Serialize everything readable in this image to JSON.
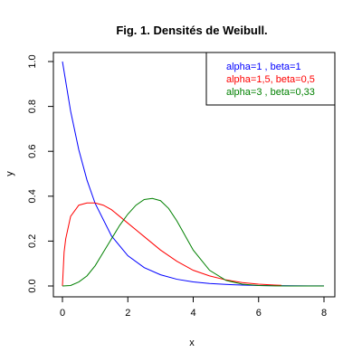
{
  "chart_data": {
    "type": "line",
    "title": "Fig. 1. Densités de Weibull.",
    "xlabel": "x",
    "ylabel": "y",
    "xlim": [
      0,
      8
    ],
    "ylim": [
      0,
      1
    ],
    "xticks": [
      0,
      2,
      4,
      6,
      8
    ],
    "yticks": [
      0.0,
      0.2,
      0.4,
      0.6,
      0.8,
      1.0
    ],
    "xtick_labels": [
      "0",
      "2",
      "4",
      "6",
      "8"
    ],
    "ytick_labels": [
      "0.0",
      "0.2",
      "0.4",
      "0.6",
      "0.8",
      "1.0"
    ],
    "grid": false,
    "legend_position": "top-right",
    "series": [
      {
        "name": "alpha=1   , beta=1",
        "color": "#0000ff",
        "x": [
          0,
          0.25,
          0.5,
          0.75,
          1,
          1.5,
          2,
          2.5,
          3,
          3.5,
          4,
          4.5,
          5,
          5.5,
          6,
          6.5,
          7,
          7.5,
          8
        ],
        "y": [
          1.0,
          0.779,
          0.607,
          0.472,
          0.368,
          0.223,
          0.135,
          0.082,
          0.05,
          0.03,
          0.018,
          0.011,
          0.007,
          0.004,
          0.002,
          0.0015,
          0.0009,
          0.0006,
          0.0003
        ]
      },
      {
        "name": "alpha=1,5, beta=0,5",
        "color": "#ff0000",
        "x": [
          0,
          0.05,
          0.1,
          0.25,
          0.5,
          0.75,
          1,
          1.25,
          1.5,
          2,
          2.5,
          3,
          3.5,
          4,
          4.5,
          5,
          5.5,
          6,
          6.5,
          6.7
        ],
        "y": [
          0,
          0.15,
          0.21,
          0.31,
          0.36,
          0.37,
          0.37,
          0.36,
          0.34,
          0.28,
          0.22,
          0.16,
          0.11,
          0.07,
          0.045,
          0.027,
          0.015,
          0.008,
          0.004,
          0.003
        ]
      },
      {
        "name": "alpha=3   , beta=0,33",
        "color": "#008000",
        "x": [
          0,
          0.25,
          0.5,
          0.75,
          1,
          1.25,
          1.5,
          1.75,
          2,
          2.25,
          2.5,
          2.75,
          3,
          3.25,
          3.5,
          3.75,
          4,
          4.5,
          5,
          5.5,
          6,
          6.5,
          7,
          8
        ],
        "y": [
          0,
          0.002,
          0.018,
          0.045,
          0.09,
          0.15,
          0.21,
          0.27,
          0.32,
          0.36,
          0.385,
          0.39,
          0.38,
          0.345,
          0.29,
          0.225,
          0.16,
          0.07,
          0.025,
          0.008,
          0.002,
          0.0005,
          0.0001,
          0
        ]
      }
    ]
  }
}
